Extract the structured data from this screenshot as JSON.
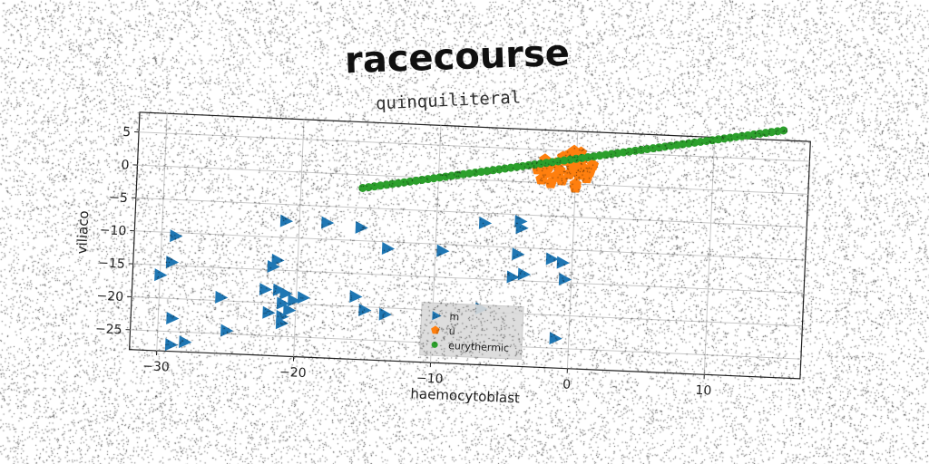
{
  "title": "racecourse",
  "subtitle": "quinquiliteral",
  "chart_data": {
    "type": "scatter",
    "xlabel": "haemocytoblast",
    "ylabel": "viliaco",
    "xlim": [
      -32,
      17
    ],
    "ylim": [
      -28,
      8
    ],
    "xticks": [
      -30,
      -20,
      -10,
      0,
      10
    ],
    "yticks": [
      5,
      0,
      -5,
      -10,
      -15,
      -20,
      -25
    ],
    "grid": true,
    "legend_position": "lower-center",
    "series": [
      {
        "name": "m",
        "marker": "triangle-right",
        "color": "#1f77b4",
        "points": [
          [
            -30,
            -16.5
          ],
          [
            -29.2,
            -14.5
          ],
          [
            -29,
            -10.5
          ],
          [
            -29,
            -23
          ],
          [
            -29,
            -27
          ],
          [
            -28,
            -26.5
          ],
          [
            -25.5,
            -19.5
          ],
          [
            -25,
            -24.5
          ],
          [
            -22.3,
            -18
          ],
          [
            -22,
            -21.5
          ],
          [
            -21.8,
            -14.5
          ],
          [
            -21.5,
            -13.5
          ],
          [
            -21.3,
            -18
          ],
          [
            -21,
            -22
          ],
          [
            -21,
            -23
          ],
          [
            -21,
            -20
          ],
          [
            -20.8,
            -18.5
          ],
          [
            -20.5,
            -21
          ],
          [
            -20.2,
            -19.5
          ],
          [
            -21,
            -7.5
          ],
          [
            -19.5,
            -19
          ],
          [
            -18,
            -7.5
          ],
          [
            -15.7,
            -18.5
          ],
          [
            -15.5,
            -8
          ],
          [
            -15,
            -20.5
          ],
          [
            -13.5,
            -11
          ],
          [
            -13.5,
            -21
          ],
          [
            -9.5,
            -11
          ],
          [
            -6.5,
            -6.5
          ],
          [
            -6.5,
            -19.5
          ],
          [
            -4.3,
            -14.5
          ],
          [
            -4,
            -11
          ],
          [
            -3.9,
            -6
          ],
          [
            -3.8,
            -7
          ],
          [
            -3.5,
            -14
          ],
          [
            -1.5,
            -11.5
          ],
          [
            -0.7,
            -12
          ],
          [
            -0.5,
            -14.5
          ],
          [
            -1,
            -23.5
          ]
        ]
      },
      {
        "name": "u",
        "marker": "pentagon",
        "color": "#ff7f0e",
        "points": [
          [
            -2.5,
            0.5
          ],
          [
            -2.2,
            1.5
          ],
          [
            -2,
            2.5
          ],
          [
            -1.8,
            0
          ],
          [
            -1.5,
            1
          ],
          [
            -1.5,
            3
          ],
          [
            -1.2,
            2
          ],
          [
            -1,
            0.5
          ],
          [
            -1,
            4
          ],
          [
            -0.8,
            3.5
          ],
          [
            -0.5,
            1.5
          ],
          [
            -0.5,
            4.5
          ],
          [
            -0.3,
            2.5
          ],
          [
            0,
            0
          ],
          [
            0,
            3
          ],
          [
            0,
            -0.5
          ],
          [
            0.2,
            1.5
          ],
          [
            0.5,
            2.5
          ],
          [
            0.5,
            4
          ],
          [
            0.8,
            1
          ],
          [
            1,
            2
          ],
          [
            1.2,
            3
          ],
          [
            -2.8,
            2
          ],
          [
            -2.3,
            3.5
          ],
          [
            0.3,
            4.8
          ],
          [
            -0.2,
            5
          ]
        ]
      },
      {
        "name": "eurythermic",
        "marker": "circle",
        "color": "#2ca02c",
        "line": {
          "from": [
            -15.5,
            -2
          ],
          "to": [
            15,
            9.5
          ],
          "count": 72
        }
      }
    ]
  }
}
